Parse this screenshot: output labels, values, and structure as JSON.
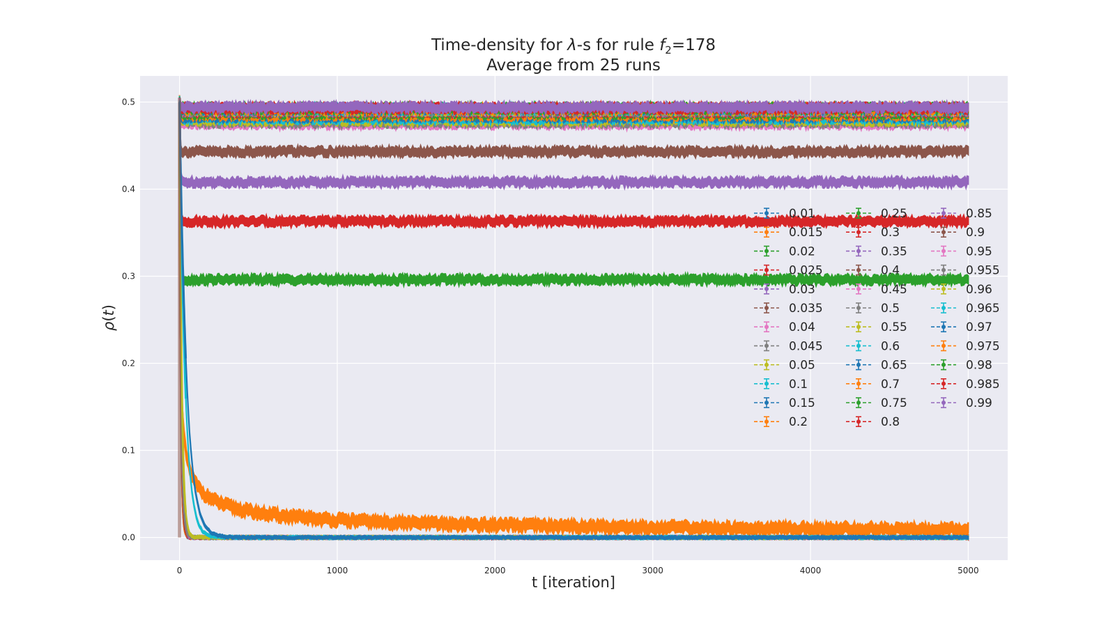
{
  "chart_data": {
    "type": "line",
    "title_line1_prefix": "Time-density for ",
    "title_lambda": "λ",
    "title_line1_mid": "-s for rule ",
    "title_f": "f",
    "title_sub": "2",
    "title_line1_suffix": "=178",
    "title_line2": "Average from 25 runs",
    "xlabel": "t [iteration]",
    "ylabel_rho": "ρ",
    "ylabel_paren_open": "(",
    "ylabel_t": "t",
    "ylabel_paren_close": ")",
    "xlim": [
      -250,
      5250
    ],
    "ylim": [
      -0.026,
      0.53
    ],
    "xticks": [
      0,
      1000,
      2000,
      3000,
      4000,
      5000
    ],
    "xtick_labels": [
      "0",
      "1000",
      "2000",
      "3000",
      "4000",
      "5000"
    ],
    "yticks": [
      0.0,
      0.1,
      0.2,
      0.3,
      0.4,
      0.5
    ],
    "ytick_labels": [
      "0.0",
      "0.1",
      "0.2",
      "0.3",
      "0.4",
      "0.5"
    ],
    "grid": true,
    "legend_placement": "center-right",
    "legend_columns": 3,
    "background": "#eaeaf2",
    "series": [
      {
        "name": "0.01",
        "color": "#1f77b4",
        "kind": "decay",
        "tau": 8,
        "final": 0.0
      },
      {
        "name": "0.015",
        "color": "#ff7f0e",
        "kind": "decay",
        "tau": 8,
        "final": 0.0
      },
      {
        "name": "0.02",
        "color": "#2ca02c",
        "kind": "decay",
        "tau": 9,
        "final": 0.0
      },
      {
        "name": "0.025",
        "color": "#d62728",
        "kind": "decay",
        "tau": 9,
        "final": 0.0
      },
      {
        "name": "0.03",
        "color": "#9467bd",
        "kind": "decay",
        "tau": 10,
        "final": 0.0
      },
      {
        "name": "0.035",
        "color": "#8c564b",
        "kind": "decay",
        "tau": 10,
        "final": 0.0
      },
      {
        "name": "0.04",
        "color": "#e377c2",
        "kind": "decay",
        "tau": 11,
        "final": 0.0
      },
      {
        "name": "0.045",
        "color": "#7f7f7f",
        "kind": "decay",
        "tau": 11,
        "final": 0.0
      },
      {
        "name": "0.05",
        "color": "#bcbd22",
        "kind": "decay",
        "tau": 14,
        "final": 0.0
      },
      {
        "name": "0.1",
        "color": "#17becf",
        "kind": "decay",
        "tau": 35,
        "final": 0.0
      },
      {
        "name": "0.15",
        "color": "#1f77b4",
        "kind": "decay",
        "tau": 45,
        "final": 0.0
      },
      {
        "name": "0.2",
        "color": "#ff7f0e",
        "kind": "powerdecay",
        "final": 0.015
      },
      {
        "name": "0.25",
        "color": "#2ca02c",
        "kind": "plateau",
        "final": 0.296
      },
      {
        "name": "0.3",
        "color": "#d62728",
        "kind": "plateau",
        "final": 0.363
      },
      {
        "name": "0.35",
        "color": "#9467bd",
        "kind": "plateau",
        "final": 0.408
      },
      {
        "name": "0.4",
        "color": "#8c564b",
        "kind": "plateau",
        "final": 0.443
      },
      {
        "name": "0.45",
        "color": "#e377c2",
        "kind": "plateau",
        "final": 0.475
      },
      {
        "name": "0.5",
        "color": "#7f7f7f",
        "kind": "plateau",
        "final": 0.477
      },
      {
        "name": "0.55",
        "color": "#bcbd22",
        "kind": "plateau",
        "final": 0.479
      },
      {
        "name": "0.6",
        "color": "#17becf",
        "kind": "plateau",
        "final": 0.481
      },
      {
        "name": "0.65",
        "color": "#1f77b4",
        "kind": "plateau",
        "final": 0.483
      },
      {
        "name": "0.7",
        "color": "#ff7f0e",
        "kind": "plateau",
        "final": 0.485
      },
      {
        "name": "0.75",
        "color": "#2ca02c",
        "kind": "plateau",
        "final": 0.487
      },
      {
        "name": "0.8",
        "color": "#d62728",
        "kind": "plateau",
        "final": 0.489
      },
      {
        "name": "0.85",
        "color": "#9467bd",
        "kind": "plateau",
        "final": 0.49
      },
      {
        "name": "0.9",
        "color": "#8c564b",
        "kind": "plateau",
        "final": 0.49
      },
      {
        "name": "0.95",
        "color": "#e377c2",
        "kind": "plateau",
        "final": 0.491
      },
      {
        "name": "0.955",
        "color": "#7f7f7f",
        "kind": "plateau",
        "final": 0.491
      },
      {
        "name": "0.96",
        "color": "#bcbd22",
        "kind": "plateau",
        "final": 0.491
      },
      {
        "name": "0.965",
        "color": "#17becf",
        "kind": "plateau",
        "final": 0.492
      },
      {
        "name": "0.97",
        "color": "#1f77b4",
        "kind": "plateau",
        "final": 0.492
      },
      {
        "name": "0.975",
        "color": "#ff7f0e",
        "kind": "plateau",
        "final": 0.492
      },
      {
        "name": "0.98",
        "color": "#2ca02c",
        "kind": "plateau",
        "final": 0.493
      },
      {
        "name": "0.985",
        "color": "#d62728",
        "kind": "plateau",
        "final": 0.493
      },
      {
        "name": "0.99",
        "color": "#9467bd",
        "kind": "plateau",
        "final": 0.494
      }
    ]
  }
}
